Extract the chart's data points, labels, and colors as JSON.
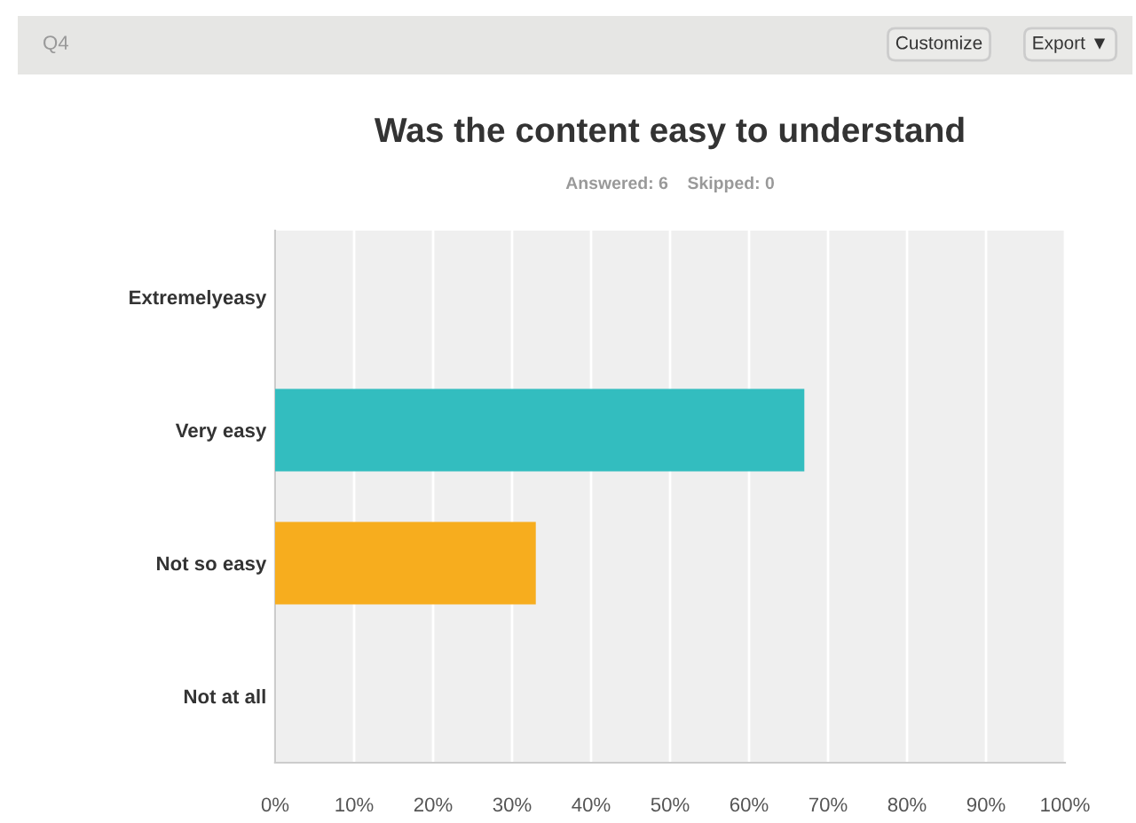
{
  "chart_data": {
    "type": "bar",
    "orientation": "horizontal",
    "title": "Was the content easy to understand",
    "subtitle": "Answered: 6    Skipped: 0",
    "annotations": [
      "Q4",
      "Customize",
      "Export ▼"
    ],
    "categories": [
      "Extremelyeasy",
      "Very easy",
      "Not so easy",
      "Not at all"
    ],
    "values": [
      0,
      67,
      33,
      0
    ],
    "colors": [
      "#33bdbf",
      "#33bdbf",
      "#f7ad1e",
      "#f7ad1e"
    ],
    "xlim": [
      0,
      100
    ],
    "xticks": [
      {
        "value": 0,
        "label": "0%"
      },
      {
        "value": 10,
        "label": "10%"
      },
      {
        "value": 20,
        "label": "20%"
      },
      {
        "value": 30,
        "label": "30%"
      },
      {
        "value": 40,
        "label": "40%"
      },
      {
        "value": 50,
        "label": "50%"
      },
      {
        "value": 60,
        "label": "60%"
      },
      {
        "value": 70,
        "label": "70%"
      },
      {
        "value": 80,
        "label": "80%"
      },
      {
        "value": 90,
        "label": "90%"
      },
      {
        "value": 100,
        "label": "100%"
      }
    ],
    "grid": "x"
  }
}
